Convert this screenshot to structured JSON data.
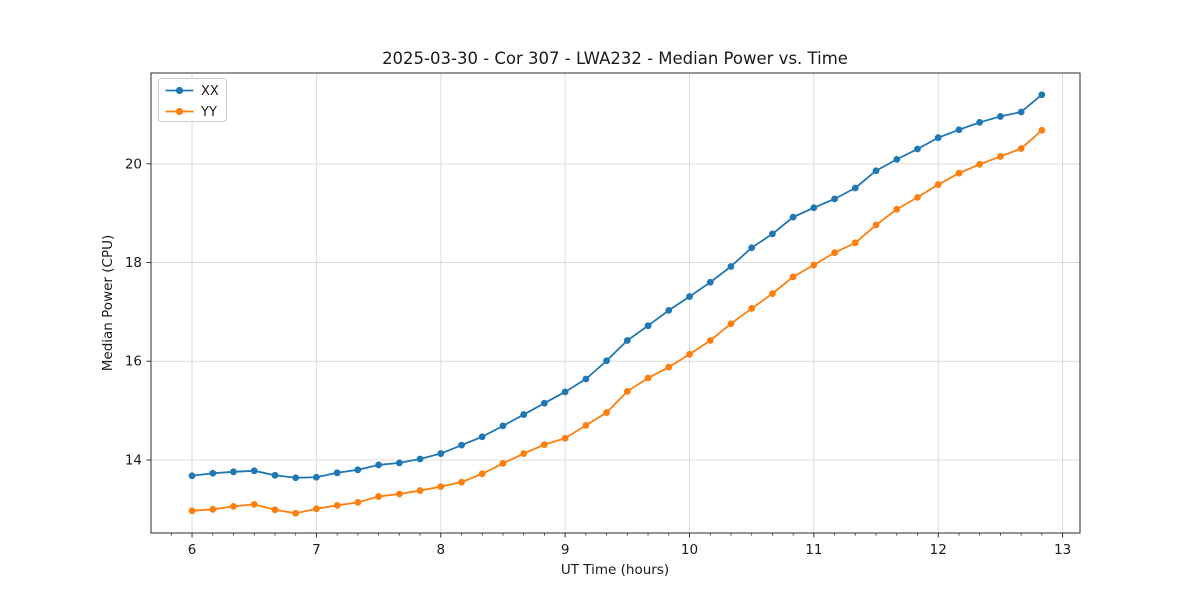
{
  "figure": {
    "title": "2025-03-30 - Cor 307 - LWA232 - Median Power vs. Time",
    "xlabel": "UT Time (hours)",
    "ylabel": "Median Power (CPU)"
  },
  "legend": {
    "position": "upper left",
    "items": [
      {
        "label": "XX",
        "color": "#1f77b4"
      },
      {
        "label": "YY",
        "color": "#ff7f0e"
      }
    ]
  },
  "colors": {
    "series_xx": "#1f77b4",
    "series_yy": "#ff7f0e",
    "grid": "#dcdcdc",
    "spine": "#2b2b2b",
    "tick": "#333333",
    "text": "#1a1a1a",
    "background": "#ffffff",
    "legend_border": "#cccccc"
  },
  "chart_data": {
    "type": "line",
    "title": "2025-03-30 - Cor 307 - LWA232 - Median Power vs. Time",
    "xlabel": "UT Time (hours)",
    "ylabel": "Median Power (CPU)",
    "grid": true,
    "marker": "o",
    "legend_position": "upper left",
    "xlim": [
      5.67,
      13.14
    ],
    "ylim": [
      12.52,
      21.84
    ],
    "x_ticks": [
      6,
      7,
      8,
      9,
      10,
      11,
      12,
      13
    ],
    "y_ticks": [
      14,
      16,
      18,
      20
    ],
    "x_minor_tick_step_hours": 0.16667,
    "x": [
      6.0,
      6.167,
      6.333,
      6.5,
      6.667,
      6.833,
      7.0,
      7.167,
      7.333,
      7.5,
      7.667,
      7.833,
      8.0,
      8.167,
      8.333,
      8.5,
      8.667,
      8.833,
      9.0,
      9.167,
      9.333,
      9.5,
      9.667,
      9.833,
      10.0,
      10.167,
      10.333,
      10.5,
      10.667,
      10.833,
      11.0,
      11.167,
      11.333,
      11.5,
      11.667,
      11.833,
      12.0,
      12.167,
      12.333,
      12.5,
      12.667,
      12.833
    ],
    "series": [
      {
        "name": "XX",
        "color": "#1f77b4",
        "values": [
          13.68,
          13.73,
          13.76,
          13.78,
          13.69,
          13.64,
          13.65,
          13.74,
          13.8,
          13.9,
          13.94,
          14.02,
          14.13,
          14.3,
          14.47,
          14.69,
          14.92,
          15.15,
          15.38,
          15.64,
          16.01,
          16.42,
          16.72,
          17.03,
          17.31,
          17.6,
          17.92,
          18.3,
          18.58,
          18.92,
          19.11,
          19.29,
          19.51,
          19.86,
          20.09,
          20.3,
          20.53,
          20.69,
          20.84,
          20.96,
          21.05,
          21.4
        ]
      },
      {
        "name": "YY",
        "color": "#ff7f0e",
        "values": [
          12.97,
          13.0,
          13.06,
          13.1,
          12.99,
          12.92,
          13.01,
          13.08,
          13.14,
          13.26,
          13.31,
          13.38,
          13.46,
          13.55,
          13.72,
          13.93,
          14.13,
          14.31,
          14.44,
          14.7,
          14.96,
          15.39,
          15.66,
          15.88,
          16.14,
          16.42,
          16.76,
          17.07,
          17.37,
          17.71,
          17.95,
          18.2,
          18.4,
          18.76,
          19.08,
          19.32,
          19.58,
          19.81,
          19.99,
          20.15,
          20.31,
          20.68
        ]
      }
    ]
  }
}
